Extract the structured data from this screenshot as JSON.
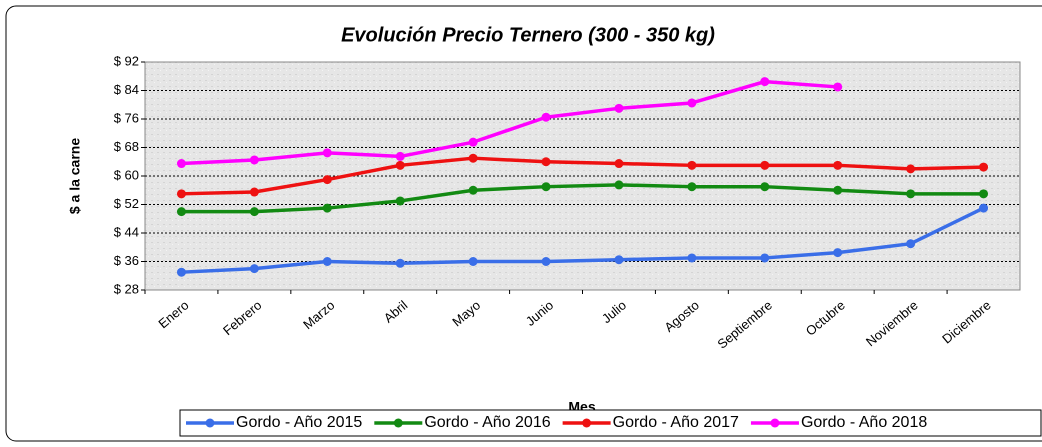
{
  "chart_data": {
    "type": "line",
    "title": "Evolución Precio Ternero (300 - 350 kg)",
    "y_label": "$ a la carne",
    "x_label": "Mes",
    "categories": [
      "Enero",
      "Febrero",
      "Marzo",
      "Abril",
      "Mayo",
      "Junio",
      "Julio",
      "Agosto",
      "Septiembre",
      "Octubre",
      "Noviembre",
      "Diciembre"
    ],
    "series": [
      {
        "name": "Gordo - Año 2015",
        "color": "#3a6ee8",
        "values": [
          33,
          34,
          36,
          35.5,
          36,
          36,
          36.5,
          37,
          37,
          38.5,
          41,
          51
        ]
      },
      {
        "name": "Gordo - Año 2016",
        "color": "#128a12",
        "values": [
          50,
          50,
          51,
          53,
          56,
          57,
          57.5,
          57,
          57,
          56,
          55,
          55
        ]
      },
      {
        "name": "Gordo - Año 2017",
        "color": "#ee1111",
        "values": [
          55,
          55.5,
          59,
          63,
          65,
          64,
          63.5,
          63,
          63,
          63,
          62,
          62.5
        ]
      },
      {
        "name": "Gordo - Año 2018",
        "color": "#ff00ff",
        "values": [
          63.5,
          64.5,
          66.5,
          65.5,
          69.5,
          76.5,
          79,
          80.5,
          86.5,
          85,
          null,
          null
        ]
      }
    ],
    "ylim": [
      28,
      92
    ],
    "yticks": [
      {
        "value": 28,
        "label": "$ 28"
      },
      {
        "value": 36,
        "label": "$ 36"
      },
      {
        "value": 44,
        "label": "$ 44"
      },
      {
        "value": 52,
        "label": "$ 52"
      },
      {
        "value": 60,
        "label": "$ 60"
      },
      {
        "value": 68,
        "label": "$ 68"
      },
      {
        "value": 76,
        "label": "$ 76"
      },
      {
        "value": 84,
        "label": "$ 84"
      },
      {
        "value": 92,
        "label": "$ 92"
      }
    ],
    "grid": true,
    "legend": "bottom"
  }
}
